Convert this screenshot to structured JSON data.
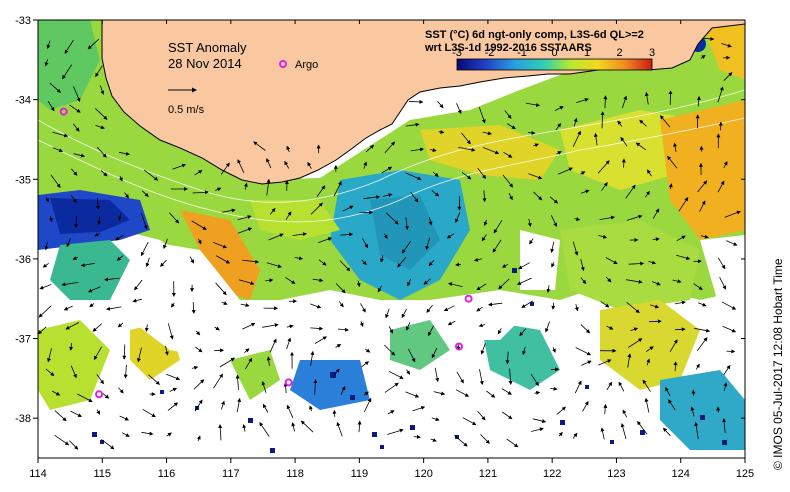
{
  "map": {
    "title": "SST Anomaly",
    "date": "28 Nov 2014",
    "argo_label": "Argo",
    "vector_scale_label": "0.5 m/s",
    "colorbar": {
      "title_line1": "SST (°C) 6d ngt-only comp, L3S-6d QL>=2",
      "title_line2": "wrt L3S-1d 1992-2016 SSTAARS",
      "tick_labels": [
        "-3",
        "-2",
        "-1",
        "0",
        "1",
        "2",
        "3"
      ],
      "range": [
        -3,
        3
      ],
      "colors": [
        "#08086e",
        "#1f3fc8",
        "#2aa0e0",
        "#30d0b0",
        "#b8e830",
        "#f0d820",
        "#f08c20",
        "#c81e10"
      ]
    },
    "x_axis": {
      "range": [
        114,
        125
      ],
      "tick_labels": [
        "114",
        "115",
        "116",
        "117",
        "118",
        "119",
        "120",
        "121",
        "122",
        "123",
        "124",
        "125"
      ]
    },
    "y_axis": {
      "range": [
        -38.5,
        -33
      ],
      "tick_labels": [
        "-33",
        "-34",
        "-35",
        "-36",
        "-37",
        "-38"
      ]
    },
    "argo_floats": [
      {
        "lon": 114.4,
        "lat": -34.15
      },
      {
        "lon": 114.95,
        "lat": -37.7
      },
      {
        "lon": 117.9,
        "lat": -37.55
      },
      {
        "lon": 120.55,
        "lat": -37.1
      },
      {
        "lon": 120.7,
        "lat": -36.5
      }
    ],
    "credit": "© IMOS 05-Jul-2017 12:08 Hobart Time",
    "land_color": "#f9c8a0",
    "argo_color": "#e020e0"
  }
}
